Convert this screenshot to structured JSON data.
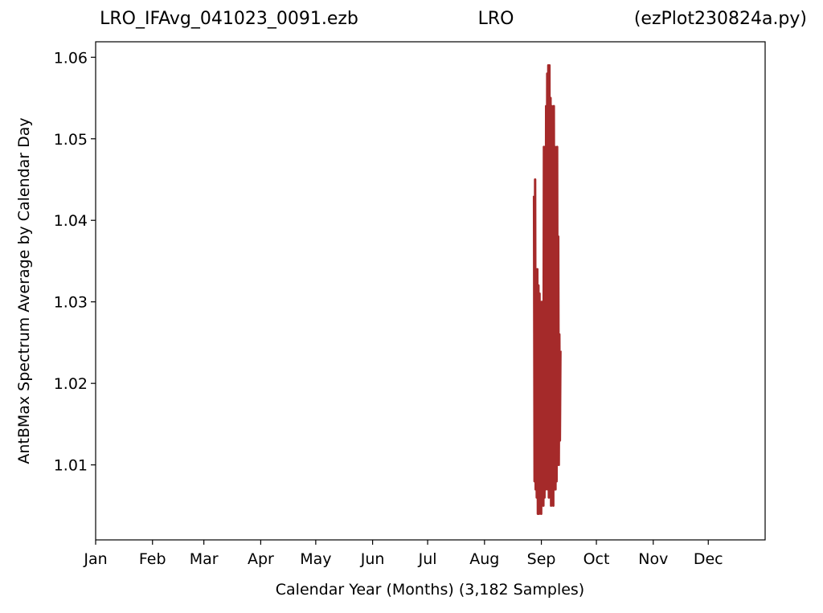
{
  "chart_data": {
    "type": "line",
    "titles": [
      "LRO_IFAvg_041023_0091.ezb",
      "LRO",
      "(ezPlot230824a.py)"
    ],
    "xlabel": "Calendar Year (Months) (3,182 Samples)",
    "ylabel": "AntBMax Spectrum Average by Calendar Day",
    "xlim": [
      0,
      365
    ],
    "xticks": [
      {
        "value": 0,
        "label": "Jan"
      },
      {
        "value": 31,
        "label": "Feb"
      },
      {
        "value": 59,
        "label": "Mar"
      },
      {
        "value": 90,
        "label": "Apr"
      },
      {
        "value": 120,
        "label": "May"
      },
      {
        "value": 151,
        "label": "Jun"
      },
      {
        "value": 181,
        "label": "Jul"
      },
      {
        "value": 212,
        "label": "Aug"
      },
      {
        "value": 243,
        "label": "Sep"
      },
      {
        "value": 273,
        "label": "Oct"
      },
      {
        "value": 304,
        "label": "Nov"
      },
      {
        "value": 334,
        "label": "Dec"
      }
    ],
    "ylim": [
      1.0008,
      1.0619
    ],
    "yticks": [
      1.01,
      1.02,
      1.03,
      1.04,
      1.05,
      1.06
    ],
    "grid": false,
    "series": [
      {
        "color": "#a52a2a",
        "x": [
          239.0,
          239.3,
          239.6,
          239.9,
          240.2,
          240.5,
          240.8,
          241.1,
          241.4,
          241.7,
          242.0,
          242.3,
          242.6,
          242.9,
          243.2,
          243.5,
          243.8,
          244.1,
          244.4,
          244.7,
          245.0,
          245.3,
          245.6,
          245.9,
          246.2,
          246.5,
          246.8,
          247.1,
          247.4,
          247.7,
          248.0,
          248.3,
          248.6,
          248.9,
          249.2,
          249.5,
          249.8,
          250.1,
          250.4,
          250.7,
          251.0,
          251.3,
          251.6,
          251.9,
          252.2,
          252.5,
          252.8,
          253.1,
          253.4
        ],
        "values": [
          1.043,
          1.008,
          1.045,
          1.007,
          1.033,
          1.006,
          1.034,
          1.004,
          1.032,
          1.004,
          1.031,
          1.005,
          1.028,
          1.004,
          1.03,
          1.006,
          1.026,
          1.005,
          1.049,
          1.006,
          1.047,
          1.007,
          1.054,
          1.008,
          1.058,
          1.007,
          1.059,
          1.006,
          1.059,
          1.008,
          1.055,
          1.005,
          1.054,
          1.006,
          1.052,
          1.005,
          1.054,
          1.007,
          1.049,
          1.007,
          1.045,
          1.008,
          1.049,
          1.012,
          1.038,
          1.01,
          1.026,
          1.013,
          1.024
        ]
      }
    ]
  }
}
